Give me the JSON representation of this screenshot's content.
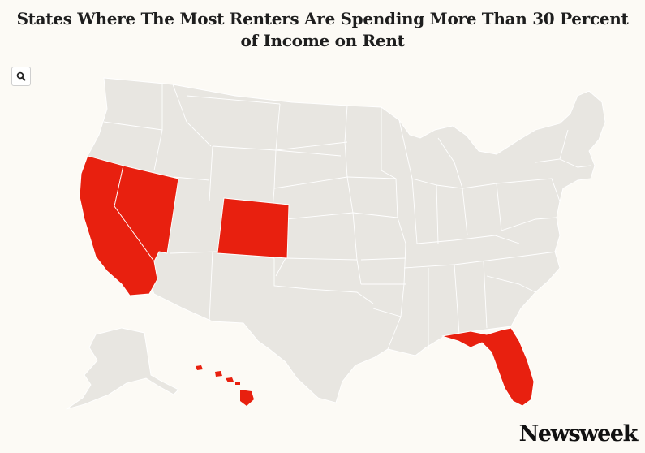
{
  "title": "States Where The Most Renters Are Spending More Than 30 Percent of Income on Rent",
  "brand": "Newsweek",
  "search": {
    "icon": "search-icon"
  },
  "colors": {
    "highlight": "#e8200f",
    "base": "#e8e6e1",
    "border": "#ffffff",
    "background": "#fcfaf5"
  },
  "highlighted_states": [
    "California",
    "Nevada",
    "Colorado",
    "Florida",
    "Hawaii"
  ]
}
